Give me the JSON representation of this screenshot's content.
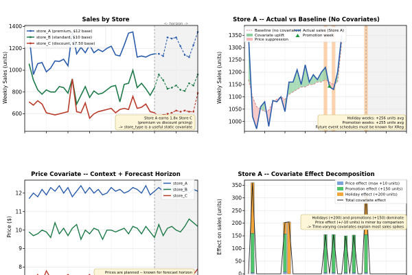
{
  "chart_data": [
    {
      "id": "p1",
      "type": "line",
      "title": "Sales by Store",
      "ylabel": "Weekly Sales (units)",
      "xlim": [
        0,
        40
      ],
      "ylim": [
        440,
        1410
      ],
      "yticks": [
        600,
        800,
        1000,
        1200,
        1400
      ],
      "history_weeks": 30,
      "horizon_label": "<- horizon ->",
      "series": [
        {
          "name": "store_A (premium, $12 base)",
          "color": "#2a5caa",
          "values": [
            1330,
            960,
            1060,
            1070,
            985,
            1020,
            1085,
            1080,
            1100,
            1040,
            1360,
            1150,
            1210,
            1160,
            1230,
            1160,
            1190,
            1170,
            1200,
            1220,
            1140,
            1130,
            1230,
            1340,
            1350,
            1120,
            1130,
            1120,
            1140,
            1150,
            1150,
            1130,
            1300,
            1290,
            1300,
            1220,
            1140,
            1120,
            1230,
            1350
          ]
        },
        {
          "name": "store_B (standard, $10 base)",
          "color": "#1e7a4a",
          "values": [
            1060,
            910,
            820,
            780,
            820,
            800,
            800,
            850,
            840,
            790,
            920,
            690,
            770,
            850,
            750,
            810,
            780,
            790,
            820,
            850,
            860,
            710,
            870,
            880,
            1000,
            840,
            880,
            830,
            770,
            840,
            960,
            910,
            830,
            840,
            860,
            820,
            810,
            880,
            860,
            960
          ]
        },
        {
          "name": "store_C (discount, $7.50 base)",
          "color": "#b83a2a",
          "values": [
            710,
            680,
            720,
            690,
            610,
            600,
            590,
            600,
            610,
            620,
            920,
            620,
            610,
            700,
            560,
            600,
            620,
            630,
            640,
            650,
            610,
            640,
            650,
            640,
            760,
            650,
            660,
            690,
            620,
            610,
            580,
            590,
            600,
            610,
            630,
            620,
            630,
            620,
            620,
            790
          ]
        }
      ],
      "annotation": [
        "Store A earns 1.8x Store C",
        "(premium vs discount pricing)",
        "-> store_type is a useful static covariate"
      ]
    },
    {
      "id": "p2",
      "type": "line",
      "title": "Store A -- Actual vs Baseline (No Covariates)",
      "ylabel": "Weekly Sales (units)",
      "xlim": [
        0,
        40
      ],
      "ylim": [
        960,
        1390
      ],
      "yticks": [
        1000,
        1050,
        1100,
        1150,
        1200,
        1250,
        1300,
        1350
      ],
      "promo_weeks": [
        20,
        22,
        30
      ],
      "history_weeks": 30,
      "actual": [
        1350,
        1020,
        970,
        1060,
        1080,
        980,
        1085,
        1080,
        1100,
        1040,
        1160,
        1160,
        1210,
        1150,
        1230,
        1160,
        1190,
        1170,
        1200,
        1220,
        1140,
        1130,
        1200,
        1350
      ],
      "baseline": [
        1170,
        1100,
        1060,
        1050,
        1040,
        1045,
        1080,
        1090,
        1100,
        1090,
        1110,
        1120,
        1130,
        1140,
        1140,
        1150,
        1150,
        1160,
        1160,
        1170,
        1160,
        1150,
        1160,
        1320
      ],
      "legend": [
        "Baseline (no covariates)",
        "Covariate uplift",
        "Price suppression",
        "Actual sales (Store A)",
        "Promotion week"
      ],
      "annotation": [
        "Holiday weeks: +256 units avg",
        "Promotion weeks: +255 units avg",
        "Future event schedules must be known for XReg"
      ]
    },
    {
      "id": "p3",
      "type": "line",
      "title": "Price Covariate -- Context + Forecast Horizon",
      "ylabel": "Price ($)",
      "xlim": [
        0,
        40
      ],
      "ylim": [
        7.5,
        12.7
      ],
      "yticks": [
        8,
        9,
        10,
        11,
        12
      ],
      "history_weeks": 30,
      "series": [
        {
          "name": "store_A",
          "color": "#2a5caa",
          "values": [
            11.7,
            12.0,
            11.8,
            12.2,
            11.9,
            12.3,
            12.1,
            12.4,
            12.0,
            12.3,
            11.8,
            12.1,
            12.4,
            12.0,
            12.3,
            12.0,
            12.2,
            11.9,
            12.0,
            12.3,
            12.1,
            12.2,
            12.0,
            12.1,
            12.3,
            12.2,
            12.0,
            12.4,
            11.9,
            12.1,
            12.3,
            12.1,
            12.3,
            12.2,
            12.4,
            12.1,
            12.3,
            12.0,
            12.2,
            12.1
          ]
        },
        {
          "name": "store_B",
          "color": "#1e7a4a",
          "values": [
            9.9,
            9.7,
            9.8,
            10.0,
            9.9,
            9.6,
            10.4,
            9.8,
            10.1,
            9.7,
            10.1,
            10.3,
            9.5,
            10.0,
            9.8,
            10.1,
            10.0,
            9.5,
            10.0,
            10.0,
            9.9,
            10.0,
            10.1,
            9.8,
            10.2,
            10.1,
            9.8,
            10.2,
            9.9,
            9.6,
            10.3,
            9.7,
            10.1,
            10.2,
            10.0,
            9.9,
            10.2,
            10.6,
            10.4,
            10.2
          ]
        },
        {
          "name": "store_C",
          "color": "#b83a2a",
          "values": [
            7.5,
            7.3,
            7.6,
            7.2,
            7.8,
            7.4,
            7.3,
            7.5,
            7.4,
            7.6,
            7.4,
            7.5,
            7.3,
            7.4,
            7.6,
            7.2,
            7.5,
            7.4,
            7.3,
            7.6,
            7.5,
            7.4,
            7.6,
            7.3,
            7.5,
            7.4,
            7.6,
            7.4,
            7.5,
            7.6,
            7.7,
            7.6,
            7.5,
            7.6,
            7.4,
            7.7,
            7.6,
            7.5,
            7.6,
            7.9
          ]
        }
      ],
      "annotation": "Prices are planned -- known for forecast horizon"
    },
    {
      "id": "p4",
      "type": "bar",
      "title": "Store A -- Covariate Effect Decomposition",
      "ylabel": "Effect on sales (units)",
      "xlim": [
        0,
        40
      ],
      "ylim": [
        -10,
        370
      ],
      "yticks": [
        0,
        50,
        100,
        150,
        200,
        250,
        300,
        350
      ],
      "events": [
        {
          "week": 2,
          "promo": 155,
          "holiday": 200,
          "price": 5
        },
        {
          "week": 10,
          "promo": 150,
          "holiday": 45,
          "price": 8
        },
        {
          "week": 11,
          "promo": 0,
          "holiday": 205,
          "price": 0
        },
        {
          "week": 20,
          "promo": 150,
          "holiday": 0,
          "price": 5
        },
        {
          "week": 22,
          "promo": 150,
          "holiday": 0,
          "price": 5
        },
        {
          "week": 25,
          "promo": 145,
          "holiday": 0,
          "price": 5
        },
        {
          "week": 27,
          "promo": 148,
          "holiday": 0,
          "price": 5
        },
        {
          "week": 30,
          "promo": 150,
          "holiday": 155,
          "price": 5
        }
      ],
      "legend": [
        "Price effect (max +10 units)",
        "Promotion effect (+150 units)",
        "Holiday effect (+200 units)",
        "Total covariate effect"
      ],
      "annotation": [
        "Holidays (+200) and promotions (+150) dominate",
        "Price effect (+/-10 units) is minor by comparison",
        "-> Time-varying covariates explain most sales spikes"
      ]
    }
  ]
}
